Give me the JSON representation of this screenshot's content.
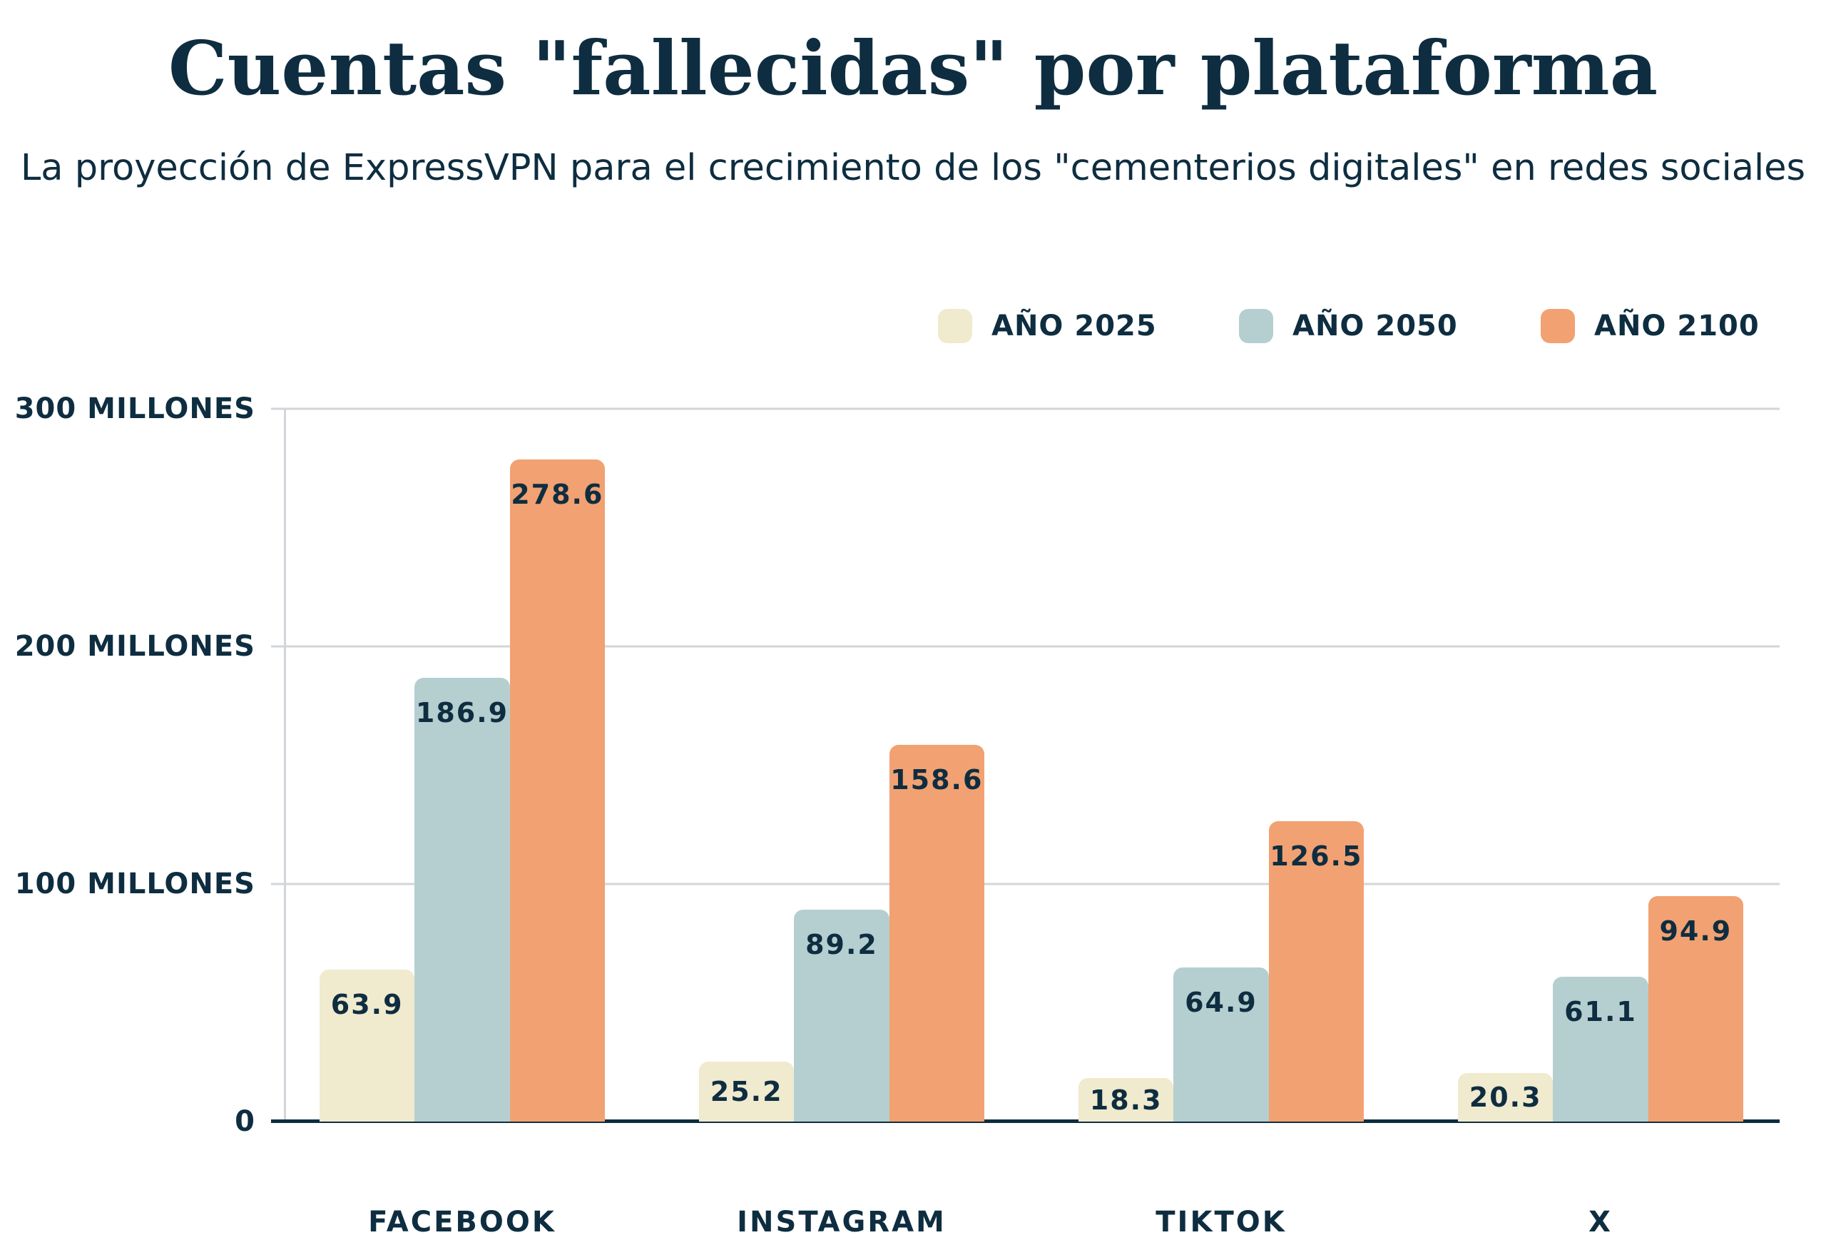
{
  "header": {
    "title": "Cuentas \"fallecidas\" por plataforma",
    "subtitle": "La proyección de ExpressVPN para el crecimiento de los \"cementerios digitales\" en redes sociales"
  },
  "colors": {
    "navy": "#0e2d40",
    "cream": "#f0eace",
    "blue": "#b5cfd0",
    "orange": "#f2a172",
    "grid": "#d2d6da",
    "background": "#ffffff"
  },
  "chart_data": {
    "type": "bar",
    "title": "Cuentas \"fallecidas\" por plataforma",
    "subtitle": "La proyección de ExpressVPN para el crecimiento de los \"cementerios digitales\" en redes sociales",
    "unit": "millones",
    "categories": [
      "FACEBOOK",
      "INSTAGRAM",
      "TIKTOK",
      "X"
    ],
    "series": [
      {
        "name": "AÑO 2025",
        "color_key": "cream",
        "values": [
          63.9,
          25.2,
          18.3,
          20.3
        ]
      },
      {
        "name": "AÑO 2050",
        "color_key": "blue",
        "values": [
          186.9,
          89.2,
          64.9,
          61.1
        ]
      },
      {
        "name": "AÑO 2100",
        "color_key": "orange",
        "values": [
          278.6,
          158.6,
          126.5,
          94.9
        ]
      }
    ],
    "y_axis": {
      "max": 300,
      "ticks": [
        {
          "value": 300,
          "label": "300 MILLONES"
        },
        {
          "value": 200,
          "label": "200 MILLONES"
        },
        {
          "value": 100,
          "label": "100 MILLONES"
        },
        {
          "value": 0,
          "label": "0"
        }
      ]
    },
    "grid": true,
    "legend_position": "top-right",
    "value_labels": "inside-top"
  }
}
